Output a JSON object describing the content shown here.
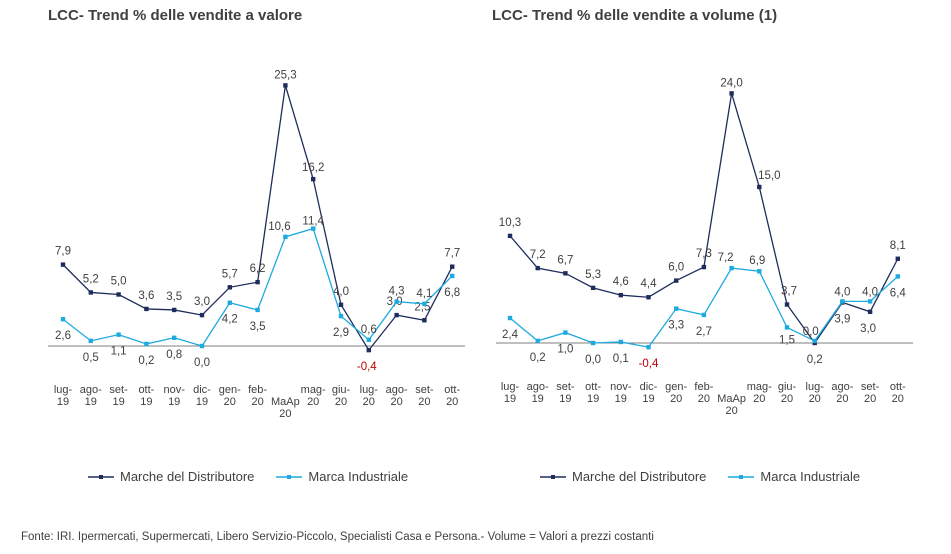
{
  "titles": {
    "left": "LCC- Trend % delle vendite a valore",
    "right": "LCC- Trend % delle vendite a volume (1)"
  },
  "footnote": "Fonte: IRI. Ipermercati, Supermercati, Libero Servizio-Piccolo, Specialisti Casa e Persona.- Volume = Valori a prezzi costanti",
  "colors": {
    "mdd": "#1f2d5c",
    "industrial": "#1eaadf",
    "negative_label": "#c00000",
    "axis": "#7f7f7f"
  },
  "chart_data": [
    {
      "type": "line",
      "title": "LCC- Trend % delle vendite a valore",
      "categories": [
        "lug-19",
        "ago-19",
        "set-19",
        "ott-19",
        "nov-19",
        "dic-19",
        "gen-20",
        "feb-20",
        "MaAp 20",
        "mag-20",
        "giu-20",
        "lug-20",
        "ago-20",
        "set-20",
        "ott-20"
      ],
      "series": [
        {
          "name": "Marche del Distributore",
          "color": "#1f2d5c",
          "values": [
            7.9,
            5.2,
            5.0,
            3.6,
            3.5,
            3.0,
            5.7,
            6.2,
            25.3,
            16.2,
            4.0,
            -0.4,
            3.0,
            2.5,
            7.7
          ]
        },
        {
          "name": "Marca Industriale",
          "color": "#1eaadf",
          "values": [
            2.6,
            0.5,
            1.1,
            0.2,
            0.8,
            0.0,
            4.2,
            3.5,
            10.6,
            11.4,
            2.9,
            0.6,
            4.3,
            4.1,
            6.8
          ]
        }
      ],
      "labels": {
        "mdd": [
          "7,9",
          "5,2",
          "5,0",
          "3,6",
          "3,5",
          "3,0",
          "5,7",
          "6,2",
          "25,3",
          "16,2",
          "4,0",
          "-0,4",
          "3,0",
          "2,5",
          "7,7"
        ],
        "industrial": [
          "2,6",
          "0,5",
          "1,1",
          "0,2",
          "0,8",
          "0,0",
          "4,2",
          "3,5",
          "10,6",
          "11,4",
          "2,9",
          "0,6",
          "4,3",
          "4,1",
          "6,8"
        ]
      },
      "legend": [
        "Marche del Distributore",
        "Marca Industriale"
      ],
      "legend_position": "bottom",
      "grid": false
    },
    {
      "type": "line",
      "title": "LCC- Trend % delle vendite a volume (1)",
      "categories": [
        "lug-19",
        "ago-19",
        "set-19",
        "ott-19",
        "nov-19",
        "dic-19",
        "gen-20",
        "feb-20",
        "MaAp 20",
        "mag-20",
        "giu-20",
        "lug-20",
        "ago-20",
        "set-20",
        "ott-20"
      ],
      "series": [
        {
          "name": "Marche del Distributore",
          "color": "#1f2d5c",
          "values": [
            10.3,
            7.2,
            6.7,
            5.3,
            4.6,
            4.4,
            6.0,
            7.3,
            24.0,
            15.0,
            3.7,
            0.0,
            3.9,
            3.0,
            8.1
          ]
        },
        {
          "name": "Marca Industriale",
          "color": "#1eaadf",
          "values": [
            2.4,
            0.2,
            1.0,
            0.0,
            0.1,
            -0.4,
            3.3,
            2.7,
            7.2,
            6.9,
            1.5,
            0.2,
            4.0,
            4.0,
            6.4
          ]
        }
      ],
      "labels": {
        "mdd": [
          "10,3",
          "7,2",
          "6,7",
          "5,3",
          "4,6",
          "4,4",
          "6,0",
          "7,3",
          "24,0",
          "15,0",
          "3,7",
          "0,0",
          "3,9",
          "3,0",
          "8,1"
        ],
        "industrial": [
          "2,4",
          "0,2",
          "1,0",
          "0,0",
          "0,1",
          "-0,4",
          "3,3",
          "2,7",
          "7,2",
          "6,9",
          "1,5",
          "0,2",
          "4,0",
          "4,0",
          "6,4"
        ]
      },
      "legend": [
        "Marche del Distributore",
        "Marca Industriale"
      ],
      "legend_position": "bottom",
      "grid": false
    }
  ]
}
